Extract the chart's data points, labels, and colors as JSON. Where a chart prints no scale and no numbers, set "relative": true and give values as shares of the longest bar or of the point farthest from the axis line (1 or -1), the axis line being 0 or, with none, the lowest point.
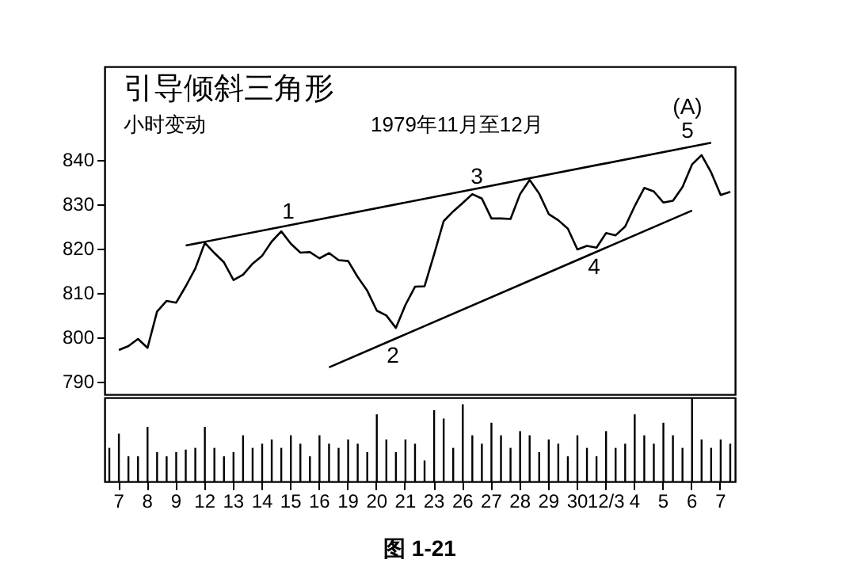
{
  "chart_data": [
    {
      "type": "line",
      "title": "引导倾斜三角形",
      "subtitle": "小时变动",
      "annotations": [
        "1979年11月至12月",
        "1",
        "2",
        "3",
        "4",
        "5",
        "(A)"
      ],
      "categories": [
        null,
        null,
        null,
        null,
        null,
        null,
        null,
        null,
        null,
        null,
        null,
        null,
        null,
        null,
        null,
        null,
        null,
        null,
        null,
        null,
        null,
        null,
        null,
        null,
        null,
        null,
        null,
        null,
        null,
        null,
        null,
        null,
        null,
        null,
        null,
        null,
        null,
        null,
        null,
        null,
        null,
        null,
        null,
        null,
        null,
        null,
        null,
        null,
        null,
        null,
        null,
        null,
        null,
        null,
        null,
        null,
        null,
        null,
        null,
        null,
        null,
        null,
        null,
        null,
        null,
        null
      ],
      "ylim": [
        787,
        861
      ],
      "yticks": [
        790,
        800,
        810,
        820,
        830,
        840
      ],
      "tick_labels": "y",
      "series": [
        {
          "color": "#000000",
          "values": [
            null,
            797,
            797.9,
            799.5,
            797.5,
            805.7,
            808.1,
            807.7,
            811.4,
            815.4,
            821.2,
            818.9,
            816.8,
            812.8,
            814,
            816.5,
            818.3,
            821.5,
            823.8,
            821,
            819,
            819.1,
            817.7,
            818.9,
            817.3,
            817.1,
            813.5,
            810.4,
            805.9,
            804.8,
            802,
            807.2,
            811.3,
            811.4,
            818.6,
            826.1,
            828.3,
            830.2,
            832.2,
            831.2,
            826.7,
            826.7,
            826.6,
            832.2,
            835.4,
            832.3,
            827.7,
            826.3,
            824.4,
            819.7,
            820.5,
            820.1,
            823.4,
            822.9,
            824.9,
            829.5,
            833.6,
            832.8,
            830.3,
            830.7,
            833.8,
            838.9,
            841,
            837.1,
            832,
            832.7
          ]
        },
        {
          "type": "line",
          "color": "#000000",
          "values": [
            null,
            null,
            null,
            null,
            null,
            null,
            null,
            null,
            820.6,
            null,
            null,
            null,
            null,
            null,
            null,
            null,
            null,
            null,
            null,
            null,
            null,
            null,
            null,
            null,
            null,
            null,
            null,
            null,
            null,
            null,
            null,
            null,
            null,
            null,
            null,
            null,
            null,
            null,
            null,
            null,
            null,
            null,
            null,
            null,
            null,
            null,
            null,
            null,
            null,
            null,
            null,
            null,
            null,
            null,
            null,
            null,
            null,
            null,
            null,
            null,
            null,
            null,
            null,
            843.8,
            null,
            null
          ]
        },
        {
          "type": "line",
          "color": "#000000",
          "values": [
            null,
            null,
            null,
            null,
            null,
            null,
            null,
            null,
            null,
            null,
            null,
            null,
            null,
            null,
            null,
            null,
            null,
            null,
            null,
            null,
            null,
            null,
            null,
            793.1,
            null,
            null,
            null,
            null,
            null,
            null,
            null,
            null,
            null,
            null,
            null,
            null,
            null,
            null,
            null,
            null,
            null,
            null,
            null,
            null,
            null,
            null,
            null,
            null,
            null,
            null,
            null,
            null,
            null,
            null,
            null,
            null,
            null,
            null,
            null,
            null,
            null,
            828.5,
            null,
            null,
            null,
            null
          ]
        }
      ]
    },
    {
      "type": "bar",
      "relative": true,
      "color": "#000000",
      "annotations": [
        "图 1-21"
      ],
      "categories": [
        null,
        "7",
        null,
        null,
        "8",
        null,
        null,
        "9",
        null,
        null,
        "12",
        null,
        null,
        "13",
        null,
        null,
        "14",
        null,
        null,
        "15",
        null,
        null,
        "16",
        null,
        null,
        "19",
        null,
        null,
        "20",
        null,
        null,
        "21",
        null,
        null,
        "23",
        null,
        null,
        "26",
        null,
        null,
        "27",
        null,
        null,
        "28",
        null,
        null,
        "29",
        null,
        null,
        "30",
        null,
        null,
        "12/3",
        null,
        null,
        "4",
        null,
        null,
        "5",
        null,
        null,
        "6",
        null,
        null,
        "7",
        null
      ],
      "values": [
        0.4,
        0.57,
        0.3,
        0.3,
        0.65,
        0.35,
        0.3,
        0.35,
        0.38,
        0.4,
        0.65,
        0.4,
        0.3,
        0.35,
        0.55,
        0.4,
        0.45,
        0.5,
        0.4,
        0.55,
        0.45,
        0.3,
        0.55,
        0.45,
        0.4,
        0.5,
        0.45,
        0.35,
        0.8,
        0.5,
        0.35,
        0.5,
        0.45,
        0.25,
        0.85,
        0.75,
        0.4,
        0.92,
        0.55,
        0.45,
        0.7,
        0.55,
        0.4,
        0.6,
        0.55,
        0.35,
        0.5,
        0.45,
        0.3,
        0.55,
        0.4,
        0.3,
        0.6,
        0.4,
        0.45,
        0.8,
        0.55,
        0.45,
        0.7,
        0.55,
        0.4,
        1,
        0.5,
        0.4,
        0.5,
        0.45
      ]
    }
  ]
}
